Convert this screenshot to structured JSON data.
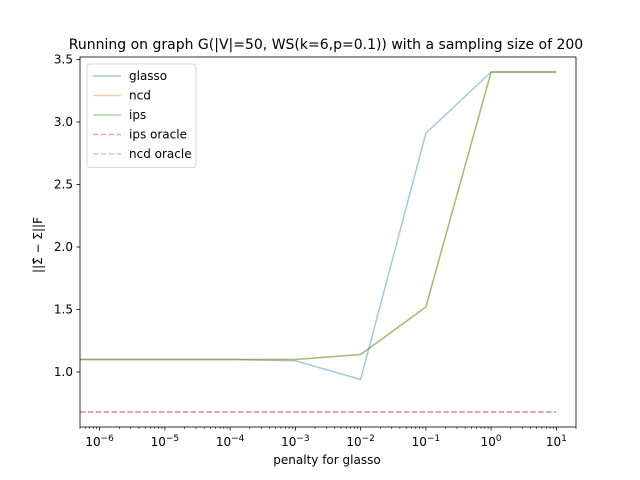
{
  "chart_data": {
    "type": "line",
    "title": "Running on graph G(|V|=50, WS(k=6,p=0.1)) with a sampling size of 200",
    "xlabel": "penalty for glasso",
    "ylabel": "||Σ̂ − Σ||F",
    "xscale": "log",
    "xlim": [
      5e-07,
      20
    ],
    "ylim": [
      0.56,
      3.52
    ],
    "xticks": [
      {
        "value": 1e-06,
        "base": "10",
        "exp": "−6"
      },
      {
        "value": 1e-05,
        "base": "10",
        "exp": "−5"
      },
      {
        "value": 0.0001,
        "base": "10",
        "exp": "−4"
      },
      {
        "value": 0.001,
        "base": "10",
        "exp": "−3"
      },
      {
        "value": 0.01,
        "base": "10",
        "exp": "−2"
      },
      {
        "value": 0.1,
        "base": "10",
        "exp": "−1"
      },
      {
        "value": 1,
        "base": "10",
        "exp": "0"
      },
      {
        "value": 10,
        "base": "10",
        "exp": "1"
      }
    ],
    "yticks": [
      {
        "value": 1.0,
        "label": "1.0"
      },
      {
        "value": 1.5,
        "label": "1.5"
      },
      {
        "value": 2.0,
        "label": "2.0"
      },
      {
        "value": 2.5,
        "label": "2.5"
      },
      {
        "value": 3.0,
        "label": "3.0"
      },
      {
        "value": 3.5,
        "label": "3.5"
      }
    ],
    "grid": false,
    "legend_position": "top-left",
    "series": [
      {
        "name": "glasso",
        "color": "#1f77b4",
        "alpha": 0.4,
        "dash": "solid",
        "x": [
          5e-07,
          0.0001,
          0.001,
          0.01,
          0.1,
          1,
          10
        ],
        "y": [
          1.1,
          1.1,
          1.09,
          0.94,
          2.91,
          3.4,
          3.4
        ]
      },
      {
        "name": "ncd",
        "color": "#ff7f0e",
        "alpha": 0.4,
        "dash": "solid",
        "x": [
          5e-07,
          0.0001,
          0.001,
          0.01,
          0.1,
          1,
          10
        ],
        "y": [
          1.1,
          1.1,
          1.1,
          1.14,
          1.52,
          3.4,
          3.4
        ]
      },
      {
        "name": "ips",
        "color": "#2ca02c",
        "alpha": 0.4,
        "dash": "solid",
        "x": [
          5e-07,
          0.0001,
          0.001,
          0.01,
          0.1,
          1,
          10
        ],
        "y": [
          1.1,
          1.1,
          1.1,
          1.14,
          1.52,
          3.4,
          3.4
        ]
      },
      {
        "name": "ips oracle",
        "color": "#d62728",
        "alpha": 0.4,
        "dash": "dashed",
        "x": [
          5e-07,
          10
        ],
        "y": [
          0.68,
          0.68
        ]
      },
      {
        "name": "ncd oracle",
        "color": "#9467bd",
        "alpha": 0.4,
        "dash": "dashed",
        "x": [
          5e-07,
          10
        ],
        "y": [
          0.68,
          0.68
        ]
      }
    ]
  }
}
